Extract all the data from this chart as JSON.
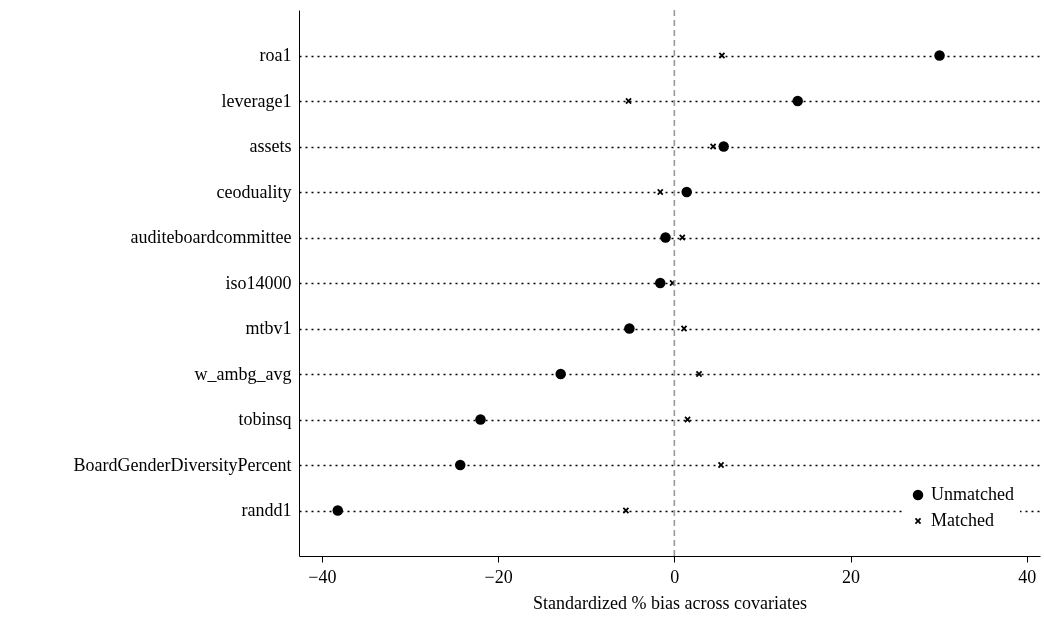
{
  "chart_data": {
    "type": "scatter",
    "xlabel": "Standardized % bias across covariates",
    "categories": [
      "roa1",
      "leverage1",
      "assets",
      "ceoduality",
      "auditeboardcommittee",
      "iso14000",
      "mtbv1",
      "w_ambg_avg",
      "tobinsq",
      "BoardGenderDiversityPercent",
      "randd1"
    ],
    "series": [
      {
        "name": "Unmatched",
        "color": "#000000",
        "marker": "circle",
        "values": [
          30.1,
          14.0,
          5.6,
          1.4,
          -1.0,
          -1.6,
          -5.1,
          -12.9,
          -22.0,
          -24.3,
          -38.2
        ]
      },
      {
        "name": "Matched",
        "color": "#000000",
        "marker": "cross",
        "values": [
          5.4,
          -5.2,
          4.4,
          -1.6,
          0.9,
          -0.2,
          1.1,
          2.8,
          1.5,
          5.3,
          -5.5
        ]
      }
    ],
    "xlim": [
      -42.6,
      41.5
    ],
    "xticks": [
      -40,
      -20,
      0,
      20,
      40
    ],
    "ref_lines": [
      {
        "axis": "x",
        "value": 0,
        "color": "#999999",
        "line_style": "dashed"
      }
    ],
    "grid": "y",
    "legend": "bottom right",
    "orientation": "horizontal"
  }
}
